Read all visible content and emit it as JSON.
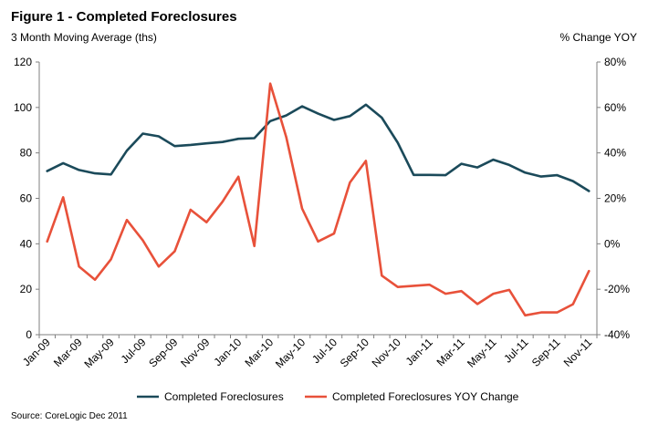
{
  "figure": {
    "title": "Figure 1 - Completed Foreclosures",
    "left_axis_caption": "3 Month Moving Average (ths)",
    "right_axis_caption": "% Change YOY",
    "source": "Source: CoreLogic Dec 2011"
  },
  "chart_data": {
    "type": "line",
    "title": "Figure 1 - Completed Foreclosures",
    "x_tick_labels": [
      "Jan-09",
      "Mar-09",
      "May-09",
      "Jul-09",
      "Sep-09",
      "Nov-09",
      "Jan-10",
      "Mar-10",
      "May-10",
      "Jul-10",
      "Sep-10",
      "Nov-10",
      "Jan-11",
      "Mar-11",
      "May-11",
      "Jul-11",
      "Sep-11",
      "Nov-11"
    ],
    "x": [
      "Jan-09",
      "Feb-09",
      "Mar-09",
      "Apr-09",
      "May-09",
      "Jun-09",
      "Jul-09",
      "Aug-09",
      "Sep-09",
      "Oct-09",
      "Nov-09",
      "Dec-09",
      "Jan-10",
      "Feb-10",
      "Mar-10",
      "Apr-10",
      "May-10",
      "Jun-10",
      "Jul-10",
      "Aug-10",
      "Sep-10",
      "Oct-10",
      "Nov-10",
      "Dec-10",
      "Jan-11",
      "Feb-11",
      "Mar-11",
      "Apr-11",
      "May-11",
      "Jun-11",
      "Jul-11",
      "Aug-11",
      "Sep-11",
      "Oct-11",
      "Nov-11"
    ],
    "y_left": {
      "label": "3 Month Moving Average (ths)",
      "range": [
        0,
        120
      ],
      "ticks": [
        0,
        20,
        40,
        60,
        80,
        100,
        120
      ]
    },
    "y_right": {
      "label": "% Change YOY",
      "range": [
        -40,
        80
      ],
      "ticks": [
        -40,
        -20,
        0,
        20,
        40,
        60,
        80
      ],
      "tick_labels": [
        "-40%",
        "-20%",
        "0%",
        "20%",
        "40%",
        "60%",
        "80%"
      ]
    },
    "series": [
      {
        "name": "Completed Foreclosures",
        "axis": "left",
        "color": "#1b4a5a",
        "values": [
          72,
          75.5,
          72.5,
          71,
          70.5,
          81,
          88.5,
          87.3,
          83,
          83.5,
          84.2,
          84.8,
          86.2,
          86.5,
          94,
          96.5,
          100.5,
          97.3,
          94.5,
          96.2,
          101.2,
          95.5,
          84.5,
          70.3,
          70.3,
          70.2,
          75.2,
          73.6,
          77,
          74.7,
          71.3,
          69.6,
          70.2,
          67.6,
          63.2
        ]
      },
      {
        "name": "Completed Foreclosures YOY Change",
        "axis": "right",
        "color": "#e8513a",
        "values": [
          1,
          20.5,
          -10,
          -15.8,
          -6.8,
          10.5,
          1.5,
          -10,
          -3.3,
          15,
          9.5,
          18.5,
          29.5,
          -1,
          70.5,
          47,
          15.5,
          1,
          4.5,
          27,
          36.5,
          -14,
          -19,
          -18.5,
          -18,
          -22,
          -20.8,
          -26.5,
          -22,
          -20.3,
          -31.5,
          -30.2,
          -30.2,
          -26.6,
          -12
        ]
      }
    ],
    "grid": false,
    "legend_position": "bottom"
  }
}
